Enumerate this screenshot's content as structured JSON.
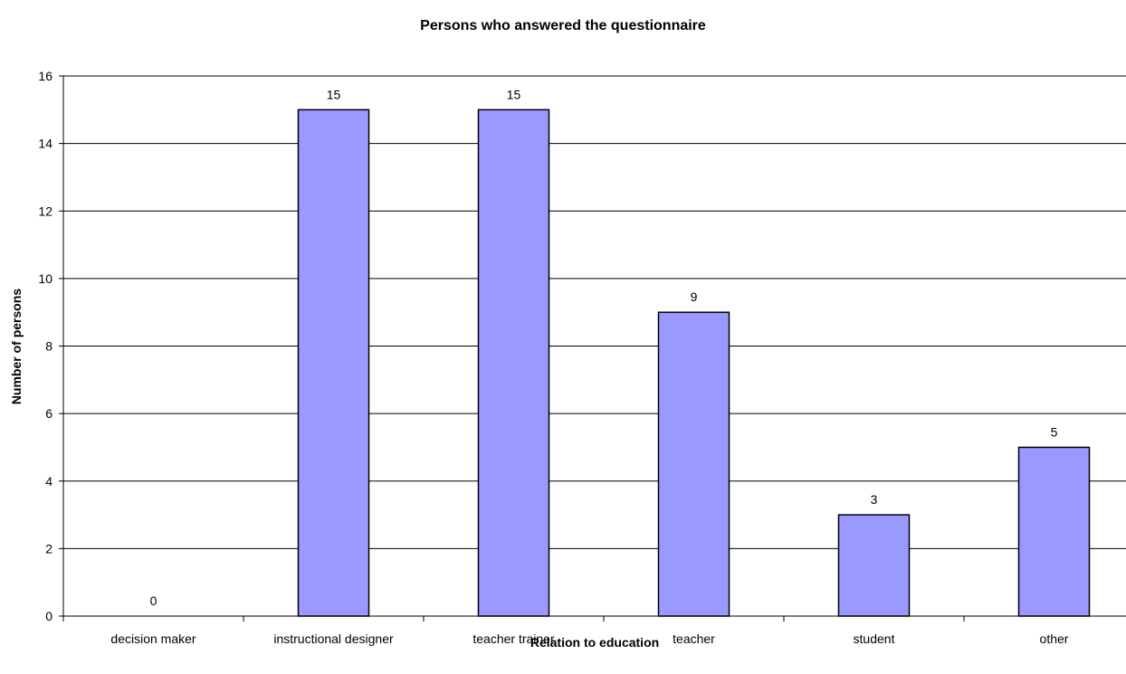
{
  "chart_data": {
    "type": "bar",
    "title": "Persons who answered the questionnaire",
    "xlabel": "Relation to education",
    "ylabel": "Number of persons",
    "categories": [
      "decision maker",
      "instructional designer",
      "teacher trainer",
      "teacher",
      "student",
      "other"
    ],
    "values": [
      0,
      15,
      15,
      9,
      3,
      5
    ],
    "ylim": [
      0,
      16
    ],
    "yticks": [
      0,
      2,
      4,
      6,
      8,
      10,
      12,
      14,
      16
    ],
    "grid": true,
    "legend": "none",
    "bar_color": "#9999ff"
  }
}
